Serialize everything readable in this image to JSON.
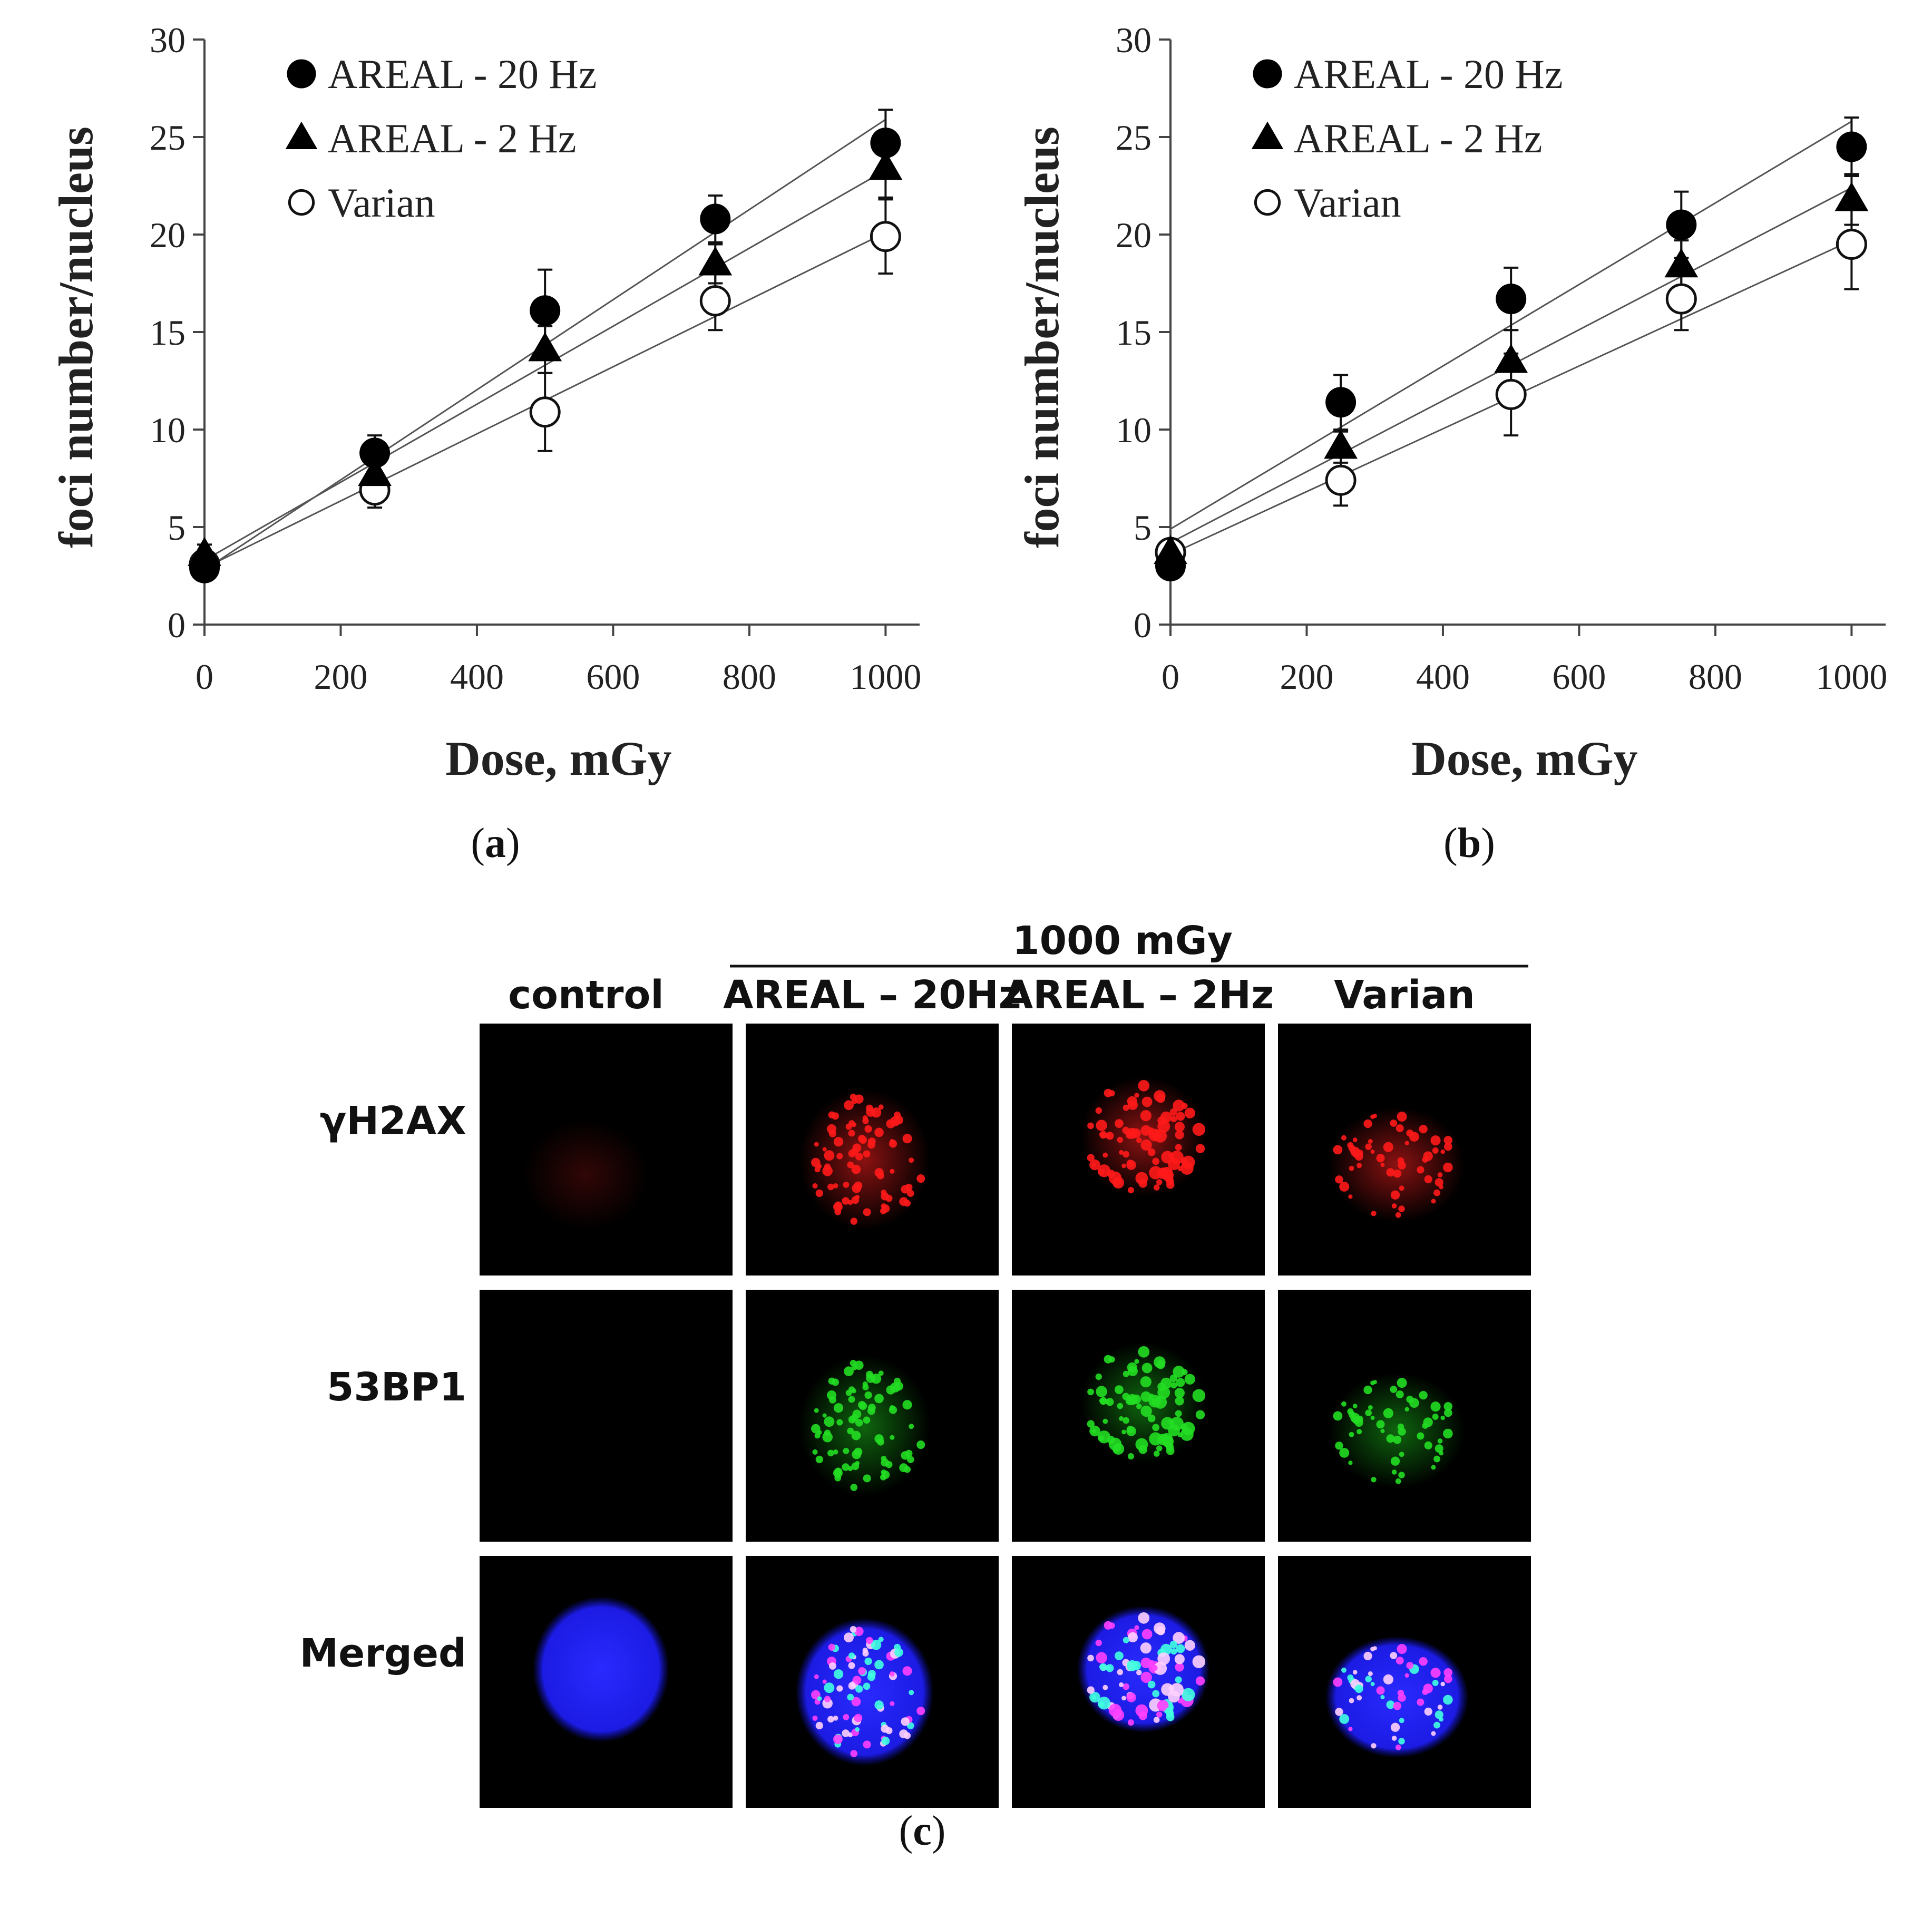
{
  "chart_data": [
    {
      "type": "scatter",
      "panel": "a",
      "caption": "a",
      "xlabel": "Dose, mGy",
      "ylabel": "foci number/nucleus",
      "xlim": [
        0,
        1050
      ],
      "ylim": [
        0,
        30
      ],
      "xticks": [
        0,
        200,
        400,
        600,
        800,
        1000
      ],
      "yticks": [
        0,
        5,
        10,
        15,
        20,
        25,
        30
      ],
      "x": [
        0,
        250,
        500,
        750,
        1000
      ],
      "legend_position": "top-left",
      "series": [
        {
          "name": "AREAL - 20 Hz",
          "marker": "filled-circle",
          "values": [
            2.9,
            8.8,
            16.1,
            20.8,
            24.7
          ],
          "errors": [
            0.5,
            0.9,
            2.1,
            1.2,
            1.7
          ],
          "fit": [
            2.8,
            25.9
          ]
        },
        {
          "name": "AREAL - 2 Hz",
          "marker": "filled-triangle",
          "values": [
            3.6,
            7.7,
            14.1,
            18.5,
            23.4
          ],
          "errors": [
            0.5,
            0.8,
            1.2,
            1.0,
            1.5
          ],
          "fit": [
            3.3,
            23.3
          ]
        },
        {
          "name": "Varian",
          "marker": "open-circle",
          "values": [
            3.1,
            6.9,
            10.9,
            16.6,
            19.9
          ],
          "errors": [
            0.4,
            0.9,
            2.0,
            1.5,
            1.9
          ],
          "fit": [
            2.9,
            20.1
          ]
        }
      ]
    },
    {
      "type": "scatter",
      "panel": "b",
      "caption": "b",
      "xlabel": "Dose, mGy",
      "ylabel": "foci number/nucleus",
      "xlim": [
        0,
        1050
      ],
      "ylim": [
        0,
        30
      ],
      "xticks": [
        0,
        200,
        400,
        600,
        800,
        1000
      ],
      "yticks": [
        0,
        5,
        10,
        15,
        20,
        25,
        30
      ],
      "x": [
        0,
        250,
        500,
        750,
        1000
      ],
      "legend_position": "top-left",
      "series": [
        {
          "name": "AREAL - 20 Hz",
          "marker": "filled-circle",
          "values": [
            3.0,
            11.4,
            16.7,
            20.5,
            24.5
          ],
          "errors": [
            0.5,
            1.4,
            1.6,
            1.7,
            1.5
          ],
          "fit": [
            4.9,
            25.8
          ]
        },
        {
          "name": "AREAL - 2 Hz",
          "marker": "filled-triangle",
          "values": [
            3.7,
            9.1,
            13.5,
            18.4,
            21.8
          ],
          "errors": [
            0.5,
            0.8,
            1.6,
            1.3,
            1.3
          ],
          "fit": [
            4.2,
            22.4
          ]
        },
        {
          "name": "Varian",
          "marker": "open-circle",
          "values": [
            3.7,
            7.4,
            11.8,
            16.7,
            19.5
          ],
          "errors": [
            0.5,
            1.3,
            2.1,
            1.6,
            2.3
          ],
          "fit": [
            3.6,
            19.7
          ]
        }
      ]
    }
  ],
  "micrograph": {
    "caption": "c",
    "dose_header": "1000 mGy",
    "columns": [
      "control",
      "AREAL – 20Hz",
      "AREAL – 2Hz",
      "Varian"
    ],
    "rows": [
      {
        "label": "γH2AX",
        "color": "#ff1a1a"
      },
      {
        "label": "53BP1",
        "color": "#22dd22"
      },
      {
        "label": "Merged",
        "color": "#2222ff"
      }
    ]
  }
}
